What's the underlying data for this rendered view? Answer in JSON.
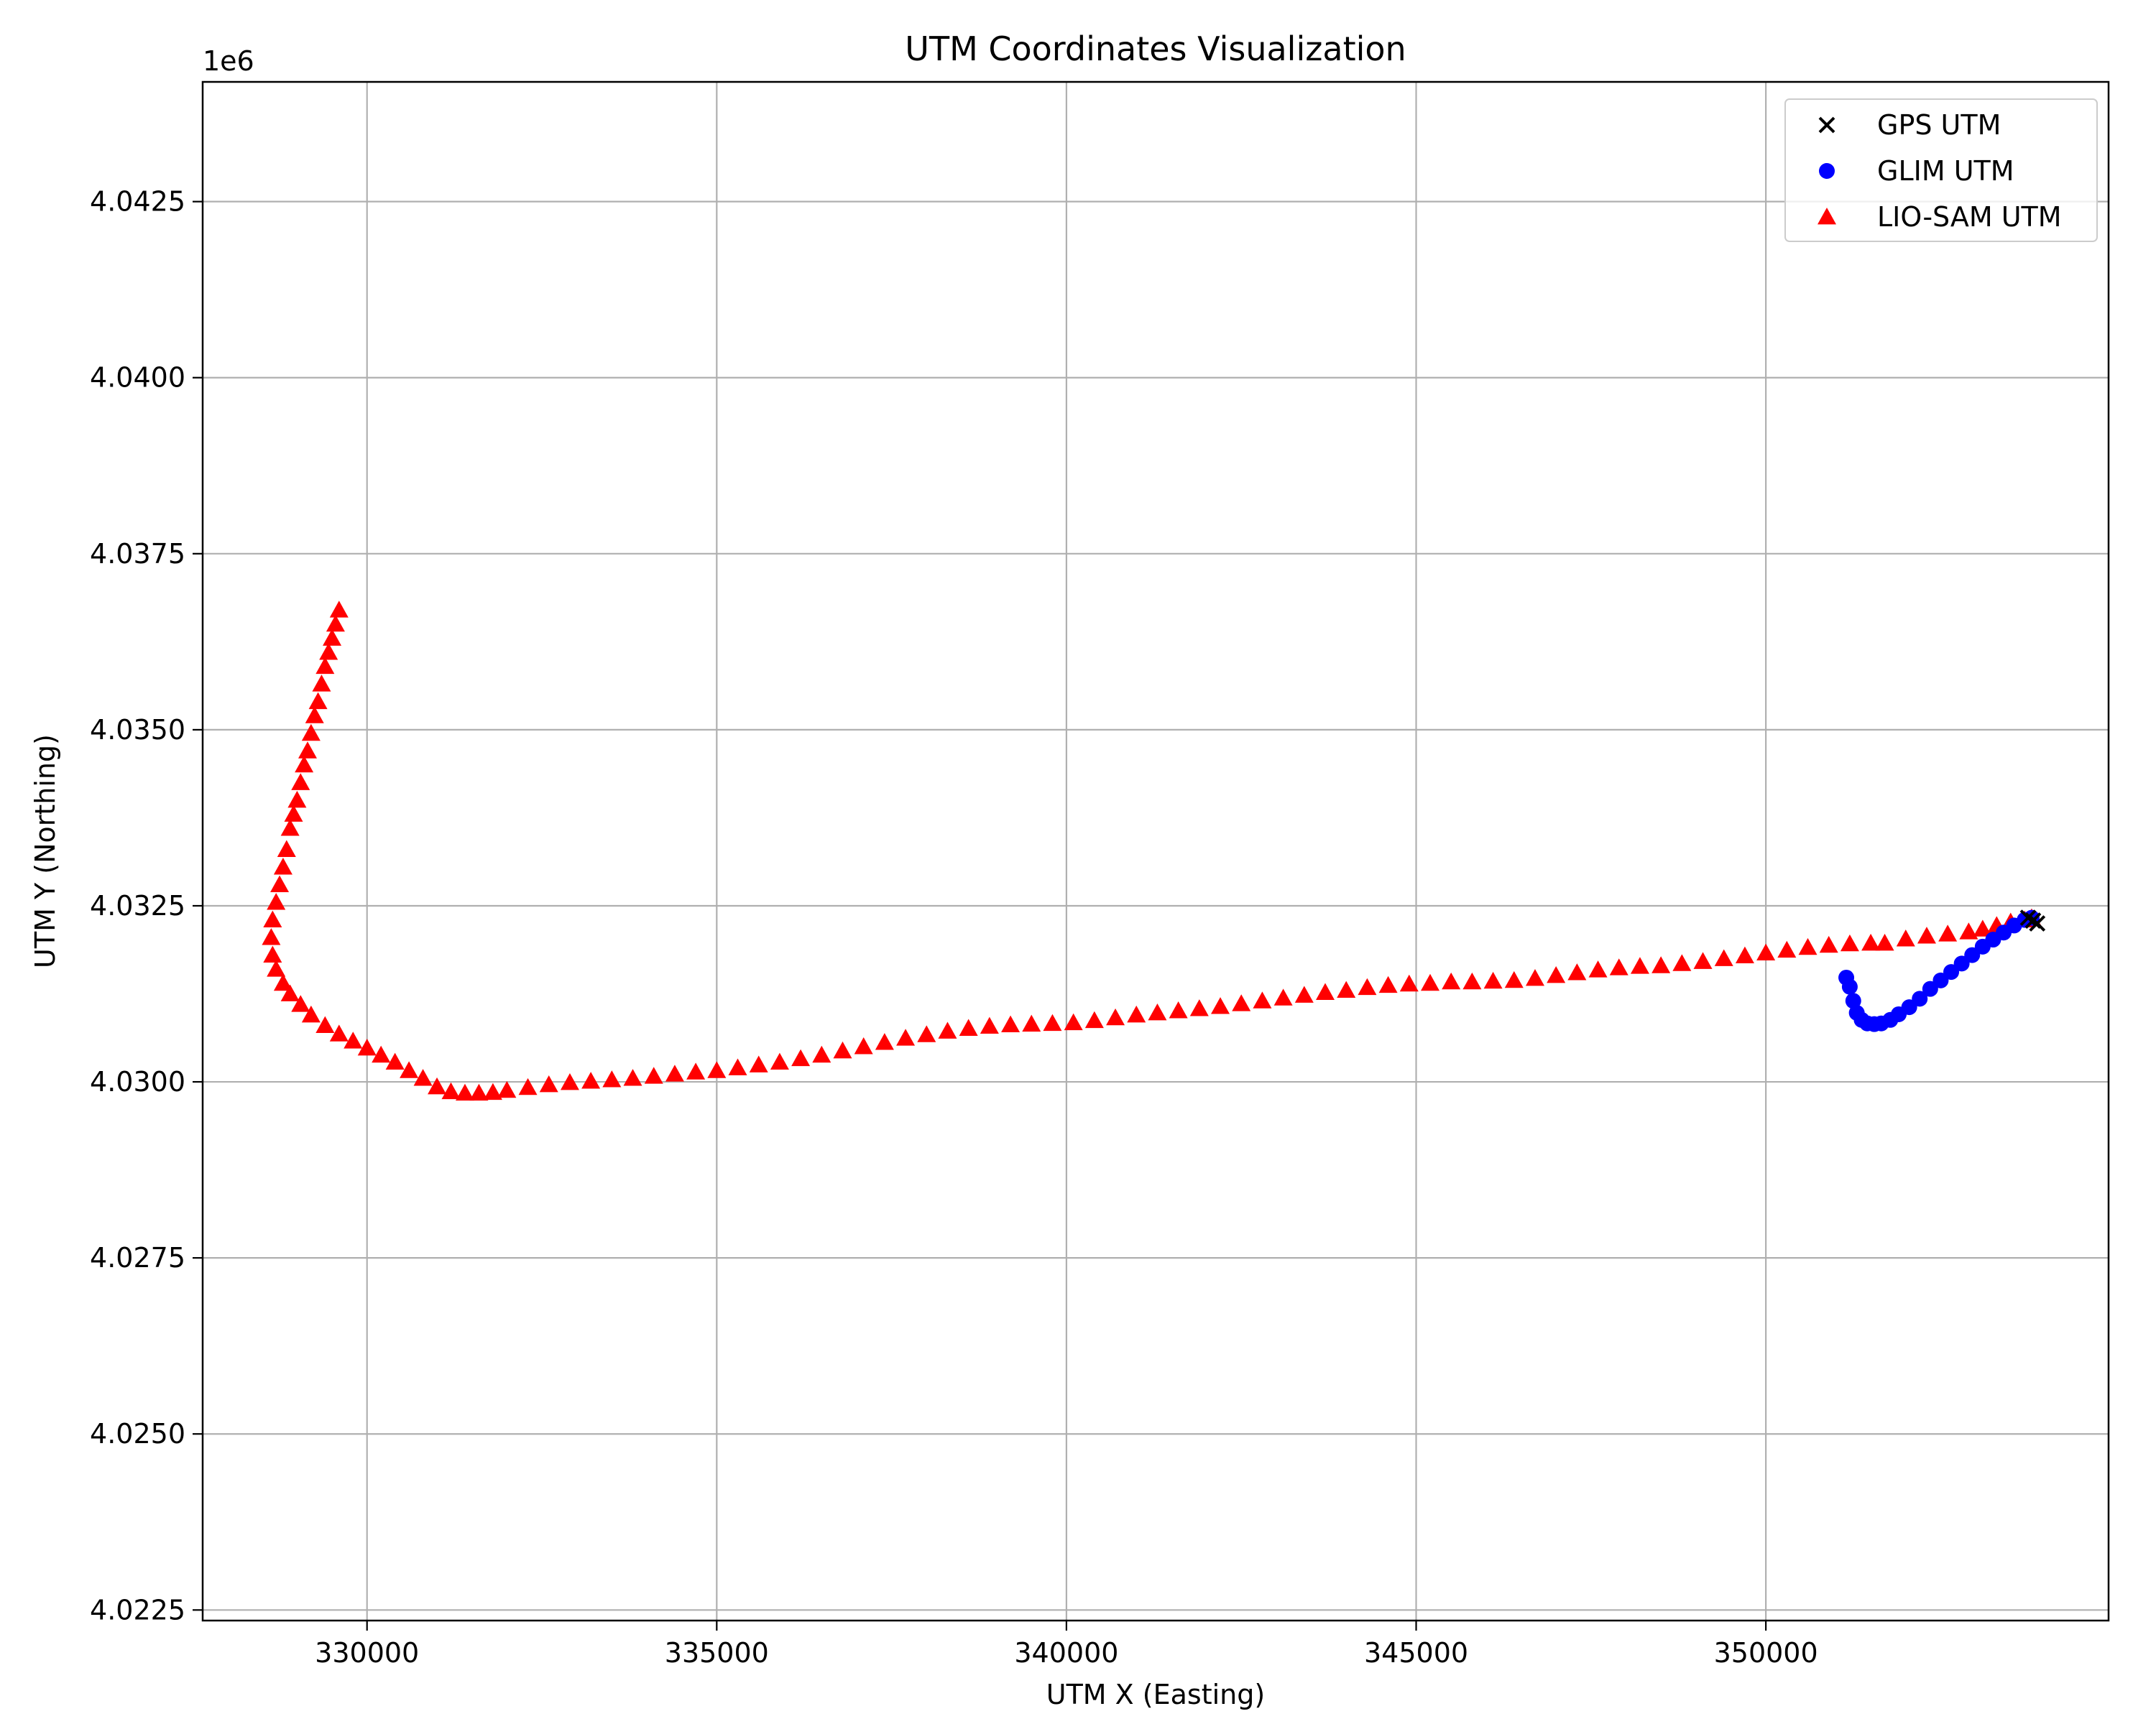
{
  "chart_data": {
    "type": "scatter",
    "title": "UTM Coordinates Visualization",
    "xlabel": "UTM X (Easting)",
    "ylabel": "UTM Y (Northing)",
    "y_offset_label": "1e6",
    "xlim": [
      327650,
      354900
    ],
    "ylim": [
      4022350,
      4044200
    ],
    "xticks": [
      330000,
      335000,
      340000,
      345000,
      350000
    ],
    "xtick_labels": [
      "330000",
      "335000",
      "340000",
      "345000",
      "350000"
    ],
    "yticks": [
      4022500,
      4025000,
      4027500,
      4030000,
      4032500,
      4035000,
      4037500,
      4040000,
      4042500
    ],
    "ytick_labels": [
      "4.0225",
      "4.0250",
      "4.0275",
      "4.0300",
      "4.0325",
      "4.0350",
      "4.0375",
      "4.0400",
      "4.0425"
    ],
    "grid": true,
    "legend_position": "top-right",
    "series": [
      {
        "name": "GPS UTM",
        "marker": "x",
        "color": "#000000",
        "points": [
          [
            353750,
            4032330
          ],
          [
            353820,
            4032290
          ],
          [
            353880,
            4032250
          ]
        ]
      },
      {
        "name": "GLIM UTM",
        "marker": "circle",
        "color": "#0000ff",
        "points": [
          [
            351150,
            4031480
          ],
          [
            351200,
            4031350
          ],
          [
            351250,
            4031150
          ],
          [
            351300,
            4030980
          ],
          [
            351370,
            4030880
          ],
          [
            351450,
            4030830
          ],
          [
            351550,
            4030820
          ],
          [
            351650,
            4030830
          ],
          [
            351780,
            4030880
          ],
          [
            351900,
            4030960
          ],
          [
            352050,
            4031060
          ],
          [
            352200,
            4031180
          ],
          [
            352350,
            4031320
          ],
          [
            352500,
            4031440
          ],
          [
            352650,
            4031560
          ],
          [
            352800,
            4031680
          ],
          [
            352950,
            4031800
          ],
          [
            353100,
            4031920
          ],
          [
            353250,
            4032020
          ],
          [
            353400,
            4032120
          ],
          [
            353550,
            4032220
          ],
          [
            353700,
            4032300
          ],
          [
            353800,
            4032330
          ]
        ]
      },
      {
        "name": "LIO-SAM UTM",
        "marker": "triangle",
        "color": "#ff0000",
        "points": [
          [
            329600,
            4036700
          ],
          [
            329550,
            4036500
          ],
          [
            329500,
            4036300
          ],
          [
            329450,
            4036100
          ],
          [
            329400,
            4035900
          ],
          [
            329350,
            4035650
          ],
          [
            329300,
            4035400
          ],
          [
            329250,
            4035200
          ],
          [
            329200,
            4034950
          ],
          [
            329150,
            4034700
          ],
          [
            329100,
            4034500
          ],
          [
            329050,
            4034250
          ],
          [
            329000,
            4034000
          ],
          [
            328950,
            4033800
          ],
          [
            328900,
            4033600
          ],
          [
            328850,
            4033300
          ],
          [
            328800,
            4033050
          ],
          [
            328750,
            4032800
          ],
          [
            328700,
            4032550
          ],
          [
            328650,
            4032300
          ],
          [
            328630,
            4032050
          ],
          [
            328650,
            4031800
          ],
          [
            328700,
            4031600
          ],
          [
            328800,
            4031400
          ],
          [
            328900,
            4031250
          ],
          [
            329050,
            4031100
          ],
          [
            329200,
            4030950
          ],
          [
            329400,
            4030800
          ],
          [
            329600,
            4030680
          ],
          [
            329800,
            4030580
          ],
          [
            330000,
            4030480
          ],
          [
            330200,
            4030380
          ],
          [
            330400,
            4030280
          ],
          [
            330600,
            4030160
          ],
          [
            330800,
            4030050
          ],
          [
            331000,
            4029930
          ],
          [
            331200,
            4029860
          ],
          [
            331400,
            4029840
          ],
          [
            331600,
            4029840
          ],
          [
            331800,
            4029850
          ],
          [
            332000,
            4029880
          ],
          [
            332300,
            4029920
          ],
          [
            332600,
            4029960
          ],
          [
            332900,
            4029990
          ],
          [
            333200,
            4030010
          ],
          [
            333500,
            4030030
          ],
          [
            333800,
            4030050
          ],
          [
            334100,
            4030080
          ],
          [
            334400,
            4030110
          ],
          [
            334700,
            4030140
          ],
          [
            335000,
            4030160
          ],
          [
            335300,
            4030200
          ],
          [
            335600,
            4030240
          ],
          [
            335900,
            4030280
          ],
          [
            336200,
            4030330
          ],
          [
            336500,
            4030380
          ],
          [
            336800,
            4030440
          ],
          [
            337100,
            4030500
          ],
          [
            337400,
            4030560
          ],
          [
            337700,
            4030620
          ],
          [
            338000,
            4030670
          ],
          [
            338300,
            4030720
          ],
          [
            338600,
            4030760
          ],
          [
            338900,
            4030790
          ],
          [
            339200,
            4030810
          ],
          [
            339500,
            4030820
          ],
          [
            339800,
            4030830
          ],
          [
            340100,
            4030840
          ],
          [
            340400,
            4030870
          ],
          [
            340700,
            4030910
          ],
          [
            341000,
            4030950
          ],
          [
            341300,
            4030980
          ],
          [
            341600,
            4031010
          ],
          [
            341900,
            4031040
          ],
          [
            342200,
            4031070
          ],
          [
            342500,
            4031110
          ],
          [
            342800,
            4031150
          ],
          [
            343100,
            4031190
          ],
          [
            343400,
            4031230
          ],
          [
            343700,
            4031270
          ],
          [
            344000,
            4031300
          ],
          [
            344300,
            4031340
          ],
          [
            344600,
            4031370
          ],
          [
            344900,
            4031390
          ],
          [
            345200,
            4031400
          ],
          [
            345500,
            4031420
          ],
          [
            345800,
            4031420
          ],
          [
            346100,
            4031430
          ],
          [
            346400,
            4031440
          ],
          [
            346700,
            4031470
          ],
          [
            347000,
            4031510
          ],
          [
            347300,
            4031550
          ],
          [
            347600,
            4031590
          ],
          [
            347900,
            4031620
          ],
          [
            348200,
            4031640
          ],
          [
            348500,
            4031650
          ],
          [
            348800,
            4031680
          ],
          [
            349100,
            4031710
          ],
          [
            349400,
            4031750
          ],
          [
            349700,
            4031790
          ],
          [
            350000,
            4031830
          ],
          [
            350300,
            4031870
          ],
          [
            350600,
            4031910
          ],
          [
            350900,
            4031940
          ],
          [
            351200,
            4031960
          ],
          [
            351500,
            4031970
          ],
          [
            351700,
            4031970
          ],
          [
            352000,
            4032030
          ],
          [
            352300,
            4032070
          ],
          [
            352600,
            4032100
          ],
          [
            352900,
            4032130
          ],
          [
            353100,
            4032170
          ],
          [
            353300,
            4032220
          ],
          [
            353500,
            4032270
          ],
          [
            353700,
            4032300
          ],
          [
            353800,
            4032330
          ]
        ]
      }
    ]
  }
}
